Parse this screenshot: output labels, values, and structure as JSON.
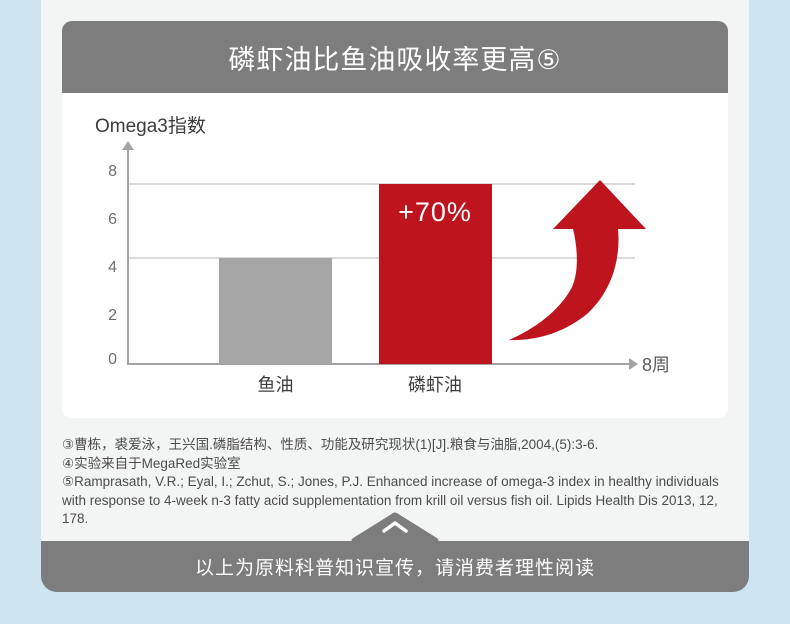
{
  "theme": {
    "page_bg": "#cee4f1",
    "panel_bg": "#f3f4f4",
    "bar_color": "#7d7d7d",
    "accent_red": "#be141d",
    "muted_gray": "#a5a5a5"
  },
  "header": {
    "title": "磷虾油比鱼油吸收率更高⑤"
  },
  "chart_data": {
    "type": "bar",
    "title": "Omega3指数",
    "ylabel": "Omega3指数",
    "xlabel": "8周",
    "categories": [
      "鱼油",
      "磷虾油"
    ],
    "values": [
      4.4,
      7.5
    ],
    "bar_colors": [
      "#a5a5a5",
      "#be141d"
    ],
    "annotation": {
      "text": "+70%",
      "on_category": "磷虾油"
    },
    "decoration": "red curved upward swoosh arrow at right of plot",
    "yticks": [
      0,
      2,
      4,
      6,
      8
    ],
    "ylim": [
      0,
      9
    ],
    "grid": "horizontal gridlines aligned with each bar top",
    "legend": "none"
  },
  "footnotes": {
    "lines": [
      "③曹栋，裘爱泳，王兴国.磷脂结构、性质、功能及研究现状(1)[J].粮食与油脂,2004,(5):3-6.",
      "④实验来自于MegaRed实验室",
      "⑤Ramprasath, V.R.; Eyal, I.; Zchut, S.; Jones, P.J. Enhanced increase of omega-3 index in healthy individuals",
      "with response to 4-week n-3 fatty acid supplementation from krill oil versus fish oil. Lipids Health Dis 2013, 12, 178."
    ]
  },
  "footer": {
    "text": "以上为原料科普知识宣传，请消费者理性阅读",
    "icon": "chevron-up"
  }
}
